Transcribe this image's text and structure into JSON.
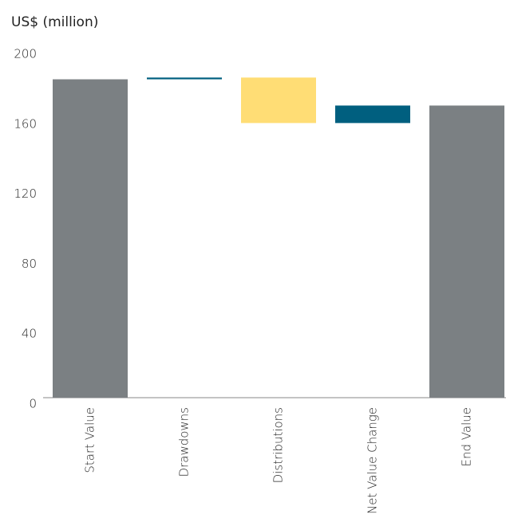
{
  "chart_data": {
    "type": "waterfall",
    "ylabel": "US$ (million)",
    "categories": [
      "Start Value",
      "Drawdowns",
      "Distributions",
      "Net Value Change",
      "End Value"
    ],
    "values": [
      182,
      1,
      -26,
      10,
      167
    ],
    "totals": [
      true,
      false,
      false,
      false,
      true
    ],
    "colors": {
      "total": "#7b8083",
      "increase": "#005f7f",
      "decrease": "#ffdd75"
    },
    "ylim": [
      0,
      200
    ],
    "yticks": [
      0,
      40,
      80,
      120,
      160,
      200
    ],
    "grid": false
  }
}
